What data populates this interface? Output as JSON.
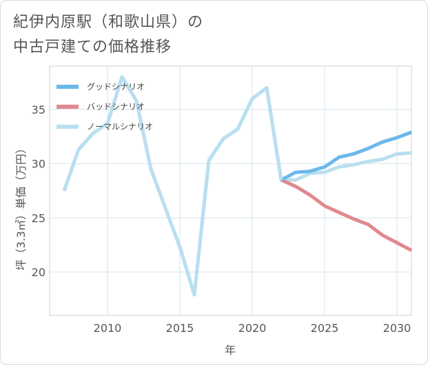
{
  "header": {
    "title_line1": "紀伊内原駅（和歌山県）の",
    "title_line2": "中古戸建ての価格推移"
  },
  "chart_data": {
    "type": "line",
    "title": "紀伊内原駅（和歌山県）の中古戸建ての価格推移",
    "xlabel": "年",
    "ylabel": "坪（3.3㎡）単価（万円）",
    "xlim": [
      2006,
      2031
    ],
    "ylim": [
      16,
      39
    ],
    "xticks": [
      2010,
      2015,
      2020,
      2025,
      2030
    ],
    "yticks": [
      20,
      25,
      30,
      35
    ],
    "grid": true,
    "legend_position": "top-left",
    "series": [
      {
        "name": "グッドシナリオ",
        "color": "#6cb8ea",
        "x": [
          2022,
          2023,
          2024,
          2025,
          2026,
          2027,
          2028,
          2029,
          2030,
          2031
        ],
        "values": [
          28.5,
          29.2,
          29.3,
          29.7,
          30.6,
          30.9,
          31.4,
          32.0,
          32.4,
          32.9
        ]
      },
      {
        "name": "バッドシナリオ",
        "color": "#e0898f",
        "x": [
          2022,
          2023,
          2024,
          2025,
          2026,
          2027,
          2028,
          2029,
          2030,
          2031
        ],
        "values": [
          28.5,
          27.9,
          27.1,
          26.1,
          25.5,
          24.9,
          24.4,
          23.4,
          22.7,
          22.0
        ]
      },
      {
        "name": "ノーマルシナリオ",
        "color": "#b9dff0",
        "x": [
          2007,
          2008,
          2009,
          2010,
          2011,
          2012,
          2013,
          2014,
          2015,
          2016,
          2017,
          2018,
          2019,
          2020,
          2021,
          2022,
          2023,
          2024,
          2025,
          2026,
          2027,
          2028,
          2029,
          2030,
          2031
        ],
        "values": [
          27.5,
          31.3,
          32.8,
          33.7,
          38.0,
          35.8,
          29.5,
          25.9,
          22.3,
          17.9,
          30.3,
          32.3,
          33.2,
          36.0,
          37.0,
          28.5,
          28.5,
          29.1,
          29.2,
          29.7,
          29.9,
          30.2,
          30.4,
          30.9,
          31.0
        ]
      }
    ]
  }
}
